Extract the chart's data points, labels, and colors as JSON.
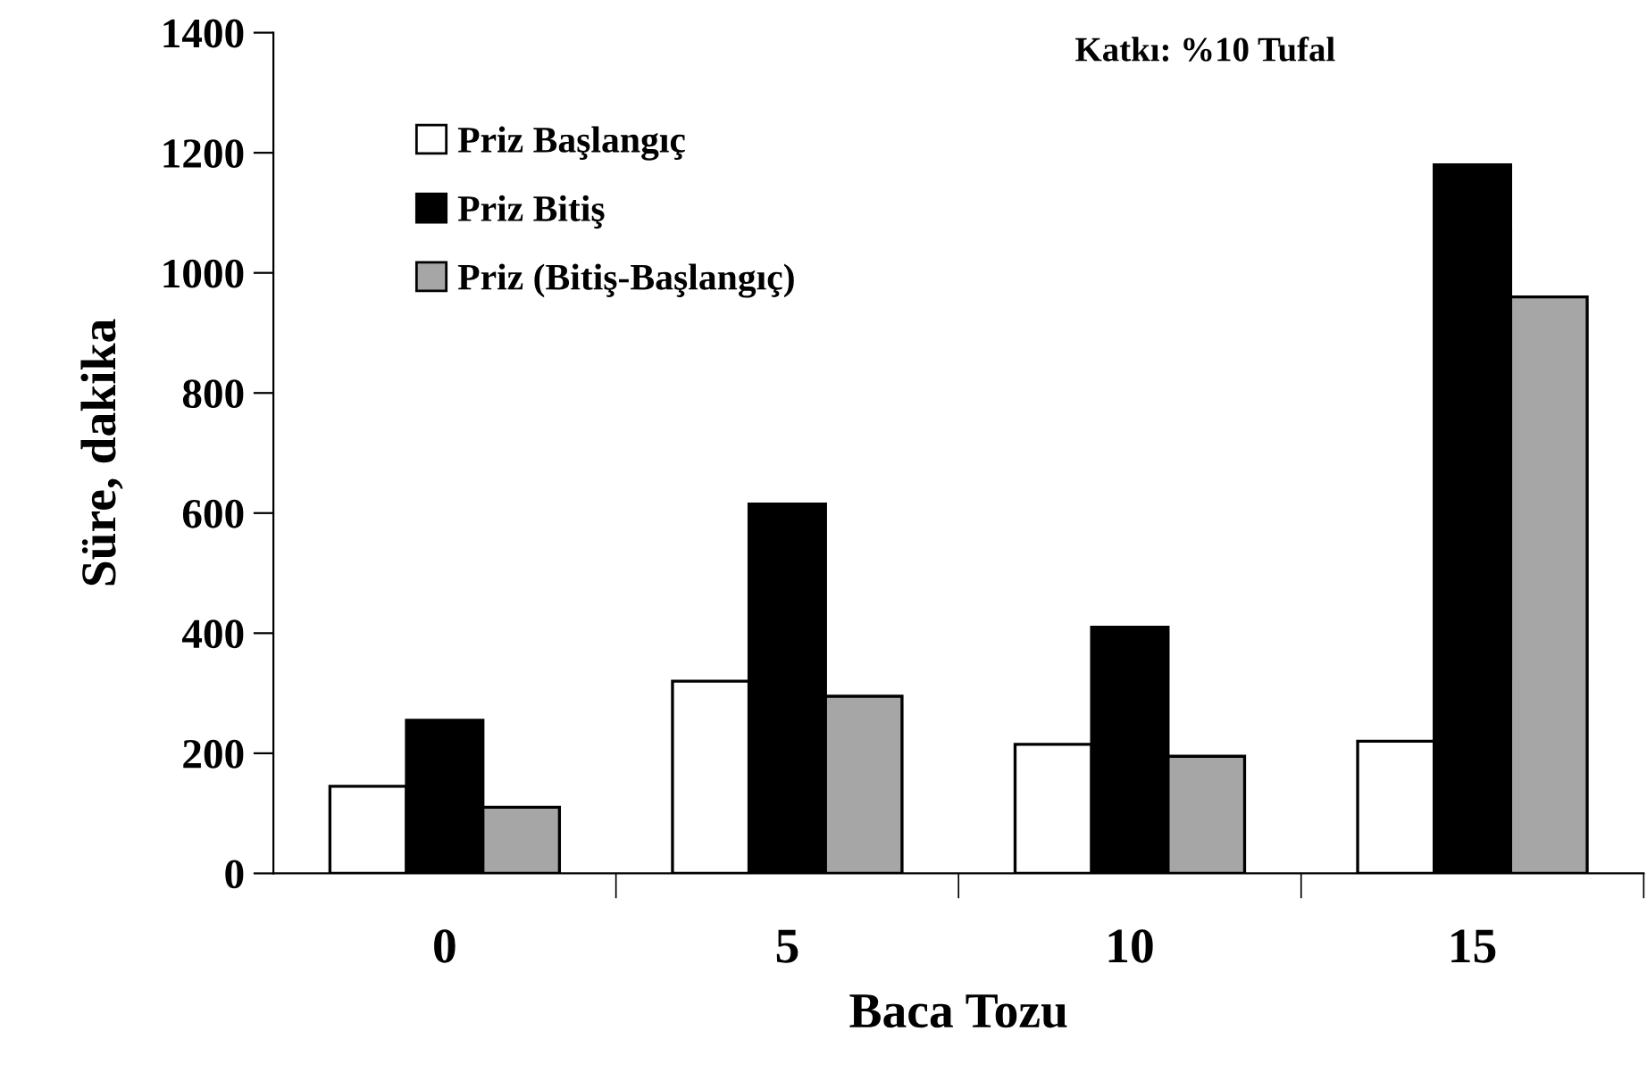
{
  "chart_data": {
    "type": "bar",
    "xlabel": "Baca Tozu",
    "ylabel": "Süre, dakika",
    "categories": [
      "0",
      "5",
      "10",
      "15"
    ],
    "series": [
      {
        "name": "Priz Başlangıç",
        "color": "#ffffff",
        "values": [
          145,
          320,
          215,
          220
        ]
      },
      {
        "name": "Priz Bitiş",
        "color": "#000000",
        "values": [
          255,
          615,
          410,
          1180
        ]
      },
      {
        "name": "Priz (Bitiş-Başlangıç)",
        "color": "#a6a6a6",
        "values": [
          110,
          295,
          195,
          960
        ]
      }
    ],
    "ylim": [
      0,
      1400
    ],
    "yticks": [
      0,
      200,
      400,
      600,
      800,
      1000,
      1200,
      1400
    ],
    "grid": false,
    "legend": "top left",
    "annotations": [
      "Katkı: %10 Tufal"
    ]
  }
}
